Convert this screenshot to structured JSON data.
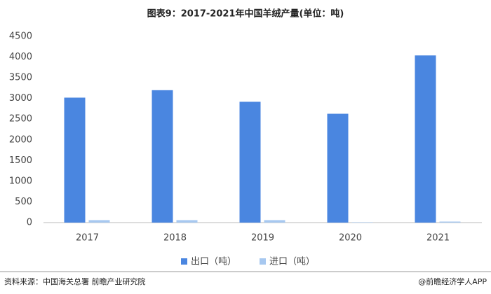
{
  "chart_data": {
    "type": "bar",
    "title": "图表9：2017-2021年中国羊绒产量(单位：吨)",
    "categories": [
      "2017",
      "2018",
      "2019",
      "2020",
      "2021"
    ],
    "series": [
      {
        "name": "出口（吨）",
        "color": "#4a86e0",
        "values": [
          3020,
          3200,
          2920,
          2630,
          4040
        ]
      },
      {
        "name": "进口（吨）",
        "color": "#a7c8f0",
        "values": [
          60,
          60,
          60,
          10,
          25
        ]
      }
    ],
    "ylim": [
      0,
      4500
    ],
    "yticks": [
      0,
      500,
      1000,
      1500,
      2000,
      2500,
      3000,
      3500,
      4000,
      4500
    ],
    "grid": false,
    "legend": "bottom",
    "source": "资料来源：中国海关总署 前瞻产业研究院",
    "brand": "@前瞻经济学人APP"
  }
}
